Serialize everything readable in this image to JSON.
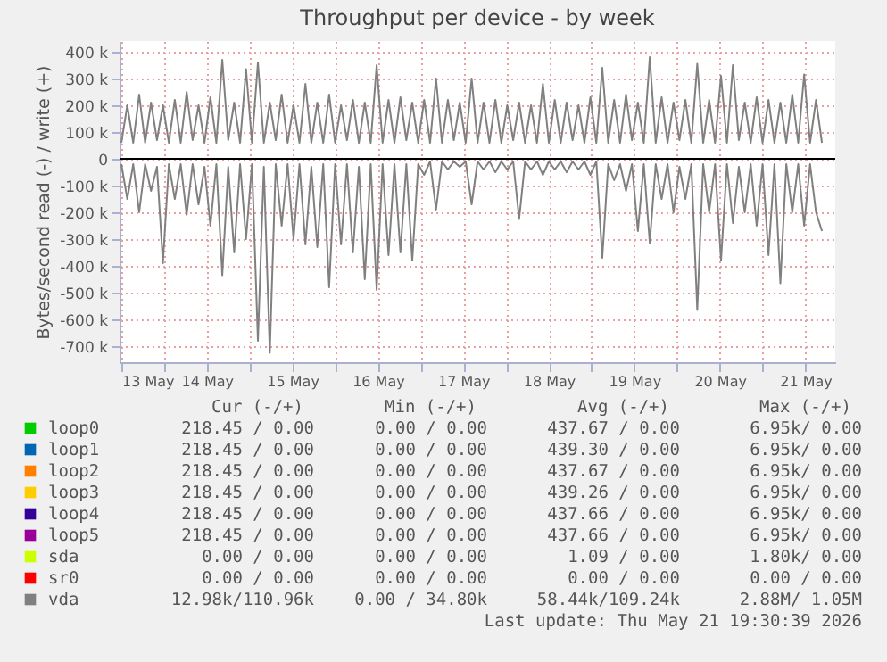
{
  "chart_data": {
    "type": "line",
    "title": "Throughput per device - by week",
    "ylabel": "Bytes/second read (-) / write (+)",
    "x": [
      "2026-05-13T12:00",
      "2026-05-13T13:40",
      "2026-05-13T15:20",
      "2026-05-13T17:00",
      "2026-05-13T18:40",
      "2026-05-13T20:20",
      "2026-05-13T22:00",
      "2026-05-13T23:40",
      "2026-05-14T01:20",
      "2026-05-14T03:00",
      "2026-05-14T04:40",
      "2026-05-14T06:20",
      "2026-05-14T08:00",
      "2026-05-14T09:40",
      "2026-05-14T11:20",
      "2026-05-14T13:00",
      "2026-05-14T14:40",
      "2026-05-14T16:20",
      "2026-05-14T18:00",
      "2026-05-14T19:40",
      "2026-05-14T21:20",
      "2026-05-14T23:00",
      "2026-05-15T00:40",
      "2026-05-15T02:20",
      "2026-05-15T04:00",
      "2026-05-15T05:40",
      "2026-05-15T07:20",
      "2026-05-15T09:00",
      "2026-05-15T10:40",
      "2026-05-15T12:20",
      "2026-05-15T14:00",
      "2026-05-15T15:40",
      "2026-05-15T17:20",
      "2026-05-15T19:00",
      "2026-05-15T20:40",
      "2026-05-15T22:20",
      "2026-05-16T00:00",
      "2026-05-16T01:40",
      "2026-05-16T03:20",
      "2026-05-16T05:00",
      "2026-05-16T06:40",
      "2026-05-16T08:20",
      "2026-05-16T10:00",
      "2026-05-16T11:40",
      "2026-05-16T13:20",
      "2026-05-16T15:00",
      "2026-05-16T16:40",
      "2026-05-16T18:20",
      "2026-05-16T20:00",
      "2026-05-16T21:40",
      "2026-05-16T23:20",
      "2026-05-17T01:00",
      "2026-05-17T02:40",
      "2026-05-17T04:20",
      "2026-05-17T06:00",
      "2026-05-17T07:40",
      "2026-05-17T09:20",
      "2026-05-17T11:00",
      "2026-05-17T12:40",
      "2026-05-17T14:20",
      "2026-05-17T16:00",
      "2026-05-17T17:40",
      "2026-05-17T19:20",
      "2026-05-17T21:00",
      "2026-05-17T22:40",
      "2026-05-18T00:20",
      "2026-05-18T02:00",
      "2026-05-18T03:40",
      "2026-05-18T05:20",
      "2026-05-18T07:00",
      "2026-05-18T08:40",
      "2026-05-18T10:20",
      "2026-05-18T12:00",
      "2026-05-18T13:40",
      "2026-05-18T15:20",
      "2026-05-18T17:00",
      "2026-05-18T18:40",
      "2026-05-18T20:20",
      "2026-05-18T22:00",
      "2026-05-18T23:40",
      "2026-05-19T01:20",
      "2026-05-19T03:00",
      "2026-05-19T04:40",
      "2026-05-19T06:20",
      "2026-05-19T08:00",
      "2026-05-19T09:40",
      "2026-05-19T11:20",
      "2026-05-19T13:00",
      "2026-05-19T14:40",
      "2026-05-19T16:20",
      "2026-05-19T18:00",
      "2026-05-19T19:40",
      "2026-05-19T21:20",
      "2026-05-19T23:00",
      "2026-05-20T00:40",
      "2026-05-20T02:20",
      "2026-05-20T04:00",
      "2026-05-20T05:40",
      "2026-05-20T07:20",
      "2026-05-20T09:00",
      "2026-05-20T10:40",
      "2026-05-20T12:20",
      "2026-05-20T14:00",
      "2026-05-20T15:40",
      "2026-05-20T17:20",
      "2026-05-20T19:00",
      "2026-05-20T20:40",
      "2026-05-20T22:20",
      "2026-05-21T00:00",
      "2026-05-21T01:40",
      "2026-05-21T03:20",
      "2026-05-21T05:00",
      "2026-05-21T06:40",
      "2026-05-21T08:20",
      "2026-05-21T10:00",
      "2026-05-21T11:40",
      "2026-05-21T13:20",
      "2026-05-21T15:00",
      "2026-05-21T16:40"
    ],
    "series": [
      {
        "name": "loop0",
        "color": "#00cc00",
        "values": [
          null,
          null,
          null,
          null,
          null,
          null,
          null,
          null,
          null,
          null,
          null,
          null,
          null,
          null,
          null,
          null,
          null,
          null,
          null,
          null,
          null,
          null,
          null,
          null,
          null,
          null,
          null,
          null,
          null,
          null,
          null,
          null,
          null,
          null,
          null,
          null,
          null,
          null,
          null,
          null,
          null,
          null,
          null,
          null,
          null,
          null,
          null,
          null,
          null,
          null,
          null,
          null,
          null,
          null,
          null,
          null,
          null,
          null,
          null,
          null,
          null,
          null,
          null,
          null,
          null,
          null,
          null,
          null,
          null,
          null,
          null,
          null,
          null,
          null,
          null,
          null,
          null,
          null,
          null,
          null,
          null,
          null,
          null,
          null,
          null,
          null,
          null,
          null,
          null,
          null,
          null,
          null,
          null,
          null,
          null,
          null,
          null,
          null,
          null,
          null,
          null,
          null,
          null,
          null,
          null,
          null,
          null,
          null,
          null,
          null,
          null,
          null,
          null,
          null,
          null,
          null,
          null,
          null,
          null
        ]
      },
      {
        "name": "loop1",
        "color": "#0066b3",
        "values": [
          null,
          null,
          null,
          null,
          null,
          null,
          null,
          null,
          null,
          null,
          null,
          null,
          null,
          null,
          null,
          null,
          null,
          null,
          null,
          null,
          null,
          null,
          null,
          null,
          null,
          null,
          null,
          null,
          null,
          null,
          null,
          null,
          null,
          null,
          null,
          null,
          null,
          null,
          null,
          null,
          null,
          null,
          null,
          null,
          null,
          null,
          null,
          null,
          null,
          null,
          null,
          null,
          null,
          null,
          null,
          null,
          null,
          null,
          null,
          null,
          null,
          null,
          null,
          null,
          null,
          null,
          null,
          null,
          null,
          null,
          null,
          null,
          null,
          null,
          null,
          null,
          null,
          null,
          null,
          null,
          null,
          null,
          null,
          null,
          null,
          null,
          null,
          null,
          null,
          null,
          null,
          null,
          null,
          null,
          null,
          null,
          null,
          null,
          null,
          null,
          null,
          null,
          null,
          null,
          null,
          null,
          null,
          null,
          null,
          null,
          null,
          null,
          null,
          null,
          null,
          null,
          null,
          null,
          null
        ]
      },
      {
        "name": "loop2",
        "color": "#ff8000",
        "values": [
          null,
          null,
          null,
          null,
          null,
          null,
          null,
          null,
          null,
          null,
          null,
          null,
          null,
          null,
          null,
          null,
          null,
          null,
          null,
          null,
          null,
          null,
          null,
          null,
          null,
          null,
          null,
          null,
          null,
          null,
          null,
          null,
          null,
          null,
          null,
          null,
          null,
          null,
          null,
          null,
          null,
          null,
          null,
          null,
          null,
          null,
          null,
          null,
          null,
          null,
          null,
          null,
          null,
          null,
          null,
          null,
          null,
          null,
          null,
          null,
          null,
          null,
          null,
          null,
          null,
          null,
          null,
          null,
          null,
          null,
          null,
          null,
          null,
          null,
          null,
          null,
          null,
          null,
          null,
          null,
          null,
          null,
          null,
          null,
          null,
          null,
          null,
          null,
          null,
          null,
          null,
          null,
          null,
          null,
          null,
          null,
          null,
          null,
          null,
          null,
          null,
          null,
          null,
          null,
          null,
          null,
          null,
          null,
          null,
          null,
          null,
          null,
          null,
          null,
          null,
          null,
          null,
          null,
          null
        ]
      },
      {
        "name": "loop3",
        "color": "#ffcc00",
        "values": [
          null,
          null,
          null,
          null,
          null,
          null,
          null,
          null,
          null,
          null,
          null,
          null,
          null,
          null,
          null,
          null,
          null,
          null,
          null,
          null,
          null,
          null,
          null,
          null,
          null,
          null,
          null,
          null,
          null,
          null,
          null,
          null,
          null,
          null,
          null,
          null,
          null,
          null,
          null,
          null,
          null,
          null,
          null,
          null,
          null,
          null,
          null,
          null,
          null,
          null,
          null,
          null,
          null,
          null,
          null,
          null,
          null,
          null,
          null,
          null,
          null,
          null,
          null,
          null,
          null,
          null,
          null,
          null,
          null,
          null,
          null,
          null,
          null,
          null,
          null,
          null,
          null,
          null,
          null,
          null,
          null,
          null,
          null,
          null,
          null,
          null,
          null,
          null,
          null,
          null,
          null,
          null,
          null,
          null,
          null,
          null,
          null,
          null,
          null,
          null,
          null,
          null,
          null,
          null,
          null,
          null,
          null,
          null,
          null,
          null,
          null,
          null,
          null,
          null,
          null,
          null,
          null,
          null,
          null
        ]
      },
      {
        "name": "loop4",
        "color": "#330099",
        "values": [
          null,
          null,
          null,
          null,
          null,
          null,
          null,
          null,
          null,
          null,
          null,
          null,
          null,
          null,
          null,
          null,
          null,
          null,
          null,
          null,
          null,
          null,
          null,
          null,
          null,
          null,
          null,
          null,
          null,
          null,
          null,
          null,
          null,
          null,
          null,
          null,
          null,
          null,
          null,
          null,
          null,
          null,
          null,
          null,
          null,
          null,
          null,
          null,
          null,
          null,
          null,
          null,
          null,
          null,
          null,
          null,
          null,
          null,
          null,
          null,
          null,
          null,
          null,
          null,
          null,
          null,
          null,
          null,
          null,
          null,
          null,
          null,
          null,
          null,
          null,
          null,
          null,
          null,
          null,
          null,
          null,
          null,
          null,
          null,
          null,
          null,
          null,
          null,
          null,
          null,
          null,
          null,
          null,
          null,
          null,
          null,
          null,
          null,
          null,
          null,
          null,
          null,
          null,
          null,
          null,
          null,
          null,
          null,
          null,
          null,
          null,
          null,
          null,
          null,
          null,
          null,
          null,
          null,
          null
        ]
      },
      {
        "name": "loop5",
        "color": "#990099",
        "values": [
          null,
          null,
          null,
          null,
          null,
          null,
          null,
          null,
          null,
          null,
          null,
          null,
          null,
          null,
          null,
          null,
          null,
          null,
          null,
          null,
          null,
          null,
          null,
          null,
          null,
          null,
          null,
          null,
          null,
          null,
          null,
          null,
          null,
          null,
          null,
          null,
          null,
          null,
          null,
          null,
          null,
          null,
          null,
          null,
          null,
          null,
          null,
          null,
          null,
          null,
          null,
          null,
          null,
          null,
          null,
          null,
          null,
          null,
          null,
          null,
          null,
          null,
          null,
          null,
          null,
          null,
          null,
          null,
          null,
          null,
          null,
          null,
          null,
          null,
          null,
          null,
          null,
          null,
          null,
          null,
          null,
          null,
          null,
          null,
          null,
          null,
          null,
          null,
          null,
          null,
          null,
          null,
          null,
          null,
          null,
          null,
          null,
          null,
          null,
          null,
          null,
          null,
          null,
          null,
          null,
          null,
          null,
          null,
          null,
          null,
          null,
          null,
          null,
          null,
          null,
          null,
          null,
          null,
          null
        ]
      },
      {
        "name": "sda",
        "color": "#ccff00",
        "values": [
          null,
          null,
          null,
          null,
          null,
          null,
          null,
          null,
          null,
          null,
          null,
          null,
          null,
          null,
          null,
          null,
          null,
          null,
          null,
          null,
          null,
          null,
          null,
          null,
          null,
          null,
          null,
          null,
          null,
          null,
          null,
          null,
          null,
          null,
          null,
          null,
          null,
          null,
          null,
          null,
          null,
          null,
          null,
          null,
          null,
          null,
          null,
          null,
          null,
          null,
          null,
          null,
          null,
          null,
          null,
          null,
          null,
          null,
          null,
          null,
          null,
          null,
          null,
          null,
          null,
          null,
          null,
          null,
          null,
          null,
          null,
          null,
          null,
          null,
          null,
          null,
          null,
          null,
          null,
          null,
          null,
          null,
          null,
          null,
          null,
          null,
          null,
          null,
          null,
          null,
          null,
          null,
          null,
          null,
          null,
          null,
          null,
          null,
          null,
          null,
          null,
          null,
          null,
          null,
          null,
          null,
          null,
          null,
          null,
          null,
          null,
          null,
          null,
          null,
          null,
          null,
          null,
          null,
          null
        ]
      },
      {
        "name": "sr0",
        "color": "#ff0000",
        "values": [
          null,
          null,
          null,
          null,
          null,
          null,
          null,
          null,
          null,
          null,
          null,
          null,
          null,
          null,
          null,
          null,
          null,
          null,
          null,
          null,
          null,
          null,
          null,
          null,
          null,
          null,
          null,
          null,
          null,
          null,
          null,
          null,
          null,
          null,
          null,
          null,
          null,
          null,
          null,
          null,
          null,
          null,
          null,
          null,
          null,
          null,
          null,
          null,
          null,
          null,
          null,
          null,
          null,
          null,
          null,
          null,
          null,
          null,
          null,
          null,
          null,
          null,
          null,
          null,
          null,
          null,
          null,
          null,
          null,
          null,
          null,
          null,
          null,
          null,
          null,
          null,
          null,
          null,
          null,
          null,
          null,
          null,
          null,
          null,
          null,
          null,
          null,
          null,
          null,
          null,
          null,
          null,
          null,
          null,
          null,
          null,
          null,
          null,
          null,
          null,
          null,
          null,
          null,
          null,
          null,
          null,
          null,
          null,
          null,
          null,
          null,
          null,
          null,
          null,
          null,
          null,
          null,
          null,
          null
        ]
      },
      {
        "name": "vda",
        "color": "#808080",
        "values": [
          60000,
          200000,
          60000,
          240000,
          60000,
          210000,
          70000,
          200000,
          60000,
          220000,
          60000,
          250000,
          70000,
          200000,
          60000,
          230000,
          60000,
          370000,
          70000,
          210000,
          60000,
          335000,
          60000,
          360000,
          60000,
          210000,
          70000,
          240000,
          60000,
          200000,
          60000,
          280000,
          60000,
          210000,
          60000,
          240000,
          60000,
          200000,
          70000,
          220000,
          60000,
          210000,
          60000,
          350000,
          60000,
          220000,
          60000,
          230000,
          70000,
          210000,
          60000,
          220000,
          60000,
          300000,
          60000,
          220000,
          70000,
          210000,
          60000,
          300000,
          60000,
          210000,
          60000,
          220000,
          60000,
          200000,
          70000,
          210000,
          60000,
          200000,
          60000,
          280000,
          60000,
          220000,
          60000,
          210000,
          70000,
          200000,
          60000,
          230000,
          60000,
          340000,
          60000,
          220000,
          60000,
          240000,
          70000,
          210000,
          60000,
          380000,
          60000,
          230000,
          60000,
          210000,
          70000,
          220000,
          60000,
          355000,
          60000,
          220000,
          60000,
          310000,
          60000,
          350000,
          70000,
          210000,
          60000,
          230000,
          60000,
          220000,
          60000,
          210000,
          60000,
          240000,
          60000,
          315000,
          60000,
          220000,
          60000
        ]
      },
      {
        "color": "#808080",
        "values": [
          -20000,
          -150000,
          -20000,
          -200000,
          -20000,
          -120000,
          -30000,
          -390000,
          -20000,
          -150000,
          -20000,
          -210000,
          -20000,
          -170000,
          -30000,
          -250000,
          -20000,
          -435000,
          -30000,
          -350000,
          -20000,
          -300000,
          -20000,
          -680000,
          -30000,
          -725000,
          -20000,
          -250000,
          -20000,
          -300000,
          -20000,
          -320000,
          -30000,
          -330000,
          -20000,
          -480000,
          -20000,
          -320000,
          -20000,
          -350000,
          -30000,
          -450000,
          -20000,
          -490000,
          -20000,
          -360000,
          -20000,
          -350000,
          -20000,
          -380000,
          -20000,
          -60000,
          -10000,
          -190000,
          -10000,
          -40000,
          -10000,
          -30000,
          -10000,
          -170000,
          -10000,
          -40000,
          -10000,
          -50000,
          -10000,
          -40000,
          -10000,
          -225000,
          -10000,
          -40000,
          -10000,
          -60000,
          -10000,
          -40000,
          -10000,
          -50000,
          -10000,
          -40000,
          -10000,
          -60000,
          -10000,
          -370000,
          -20000,
          -80000,
          -20000,
          -120000,
          -20000,
          -270000,
          -20000,
          -315000,
          -20000,
          -150000,
          -20000,
          -200000,
          -30000,
          -150000,
          -20000,
          -565000,
          -20000,
          -200000,
          -20000,
          -380000,
          -20000,
          -240000,
          -30000,
          -200000,
          -20000,
          -250000,
          -20000,
          -360000,
          -20000,
          -465000,
          -20000,
          -200000,
          -20000,
          -250000,
          -20000,
          -200000,
          -270000
        ]
      }
    ],
    "xlim": [
      "2026-05-13T11:30",
      "2026-05-21T20:24"
    ],
    "xticks": [
      {
        "value": "2026-05-13T12:00",
        "label": "13 May"
      },
      {
        "value": "2026-05-14T00:00",
        "label": null
      },
      {
        "value": "2026-05-14T12:00",
        "label": "14 May"
      },
      {
        "value": "2026-05-15T00:00",
        "label": null
      },
      {
        "value": "2026-05-15T12:00",
        "label": "15 May"
      },
      {
        "value": "2026-05-16T00:00",
        "label": null
      },
      {
        "value": "2026-05-16T12:00",
        "label": "16 May"
      },
      {
        "value": "2026-05-17T00:00",
        "label": null
      },
      {
        "value": "2026-05-17T12:00",
        "label": "17 May"
      },
      {
        "value": "2026-05-18T00:00",
        "label": null
      },
      {
        "value": "2026-05-18T12:00",
        "label": "18 May"
      },
      {
        "value": "2026-05-19T00:00",
        "label": null
      },
      {
        "value": "2026-05-19T12:00",
        "label": "19 May"
      },
      {
        "value": "2026-05-20T00:00",
        "label": null
      },
      {
        "value": "2026-05-20T12:00",
        "label": "20 May"
      },
      {
        "value": "2026-05-21T00:00",
        "label": null
      },
      {
        "value": "2026-05-21T12:00",
        "label": "21 May"
      }
    ],
    "ylim": [
      -760000,
      440000
    ],
    "yticks": [
      {
        "value": 400000,
        "label": "400 k"
      },
      {
        "value": 300000,
        "label": "300 k"
      },
      {
        "value": 200000,
        "label": "200 k"
      },
      {
        "value": 100000,
        "label": "100 k"
      },
      0,
      {
        "value": -100000,
        "label": "-100 k"
      },
      {
        "value": -200000,
        "label": "-200 k"
      },
      {
        "value": -300000,
        "label": "-300 k"
      },
      {
        "value": -400000,
        "label": "-400 k"
      },
      {
        "value": -500000,
        "label": "-500 k"
      },
      {
        "value": -600000,
        "label": "-600 k"
      },
      {
        "value": -700000,
        "label": "-700 k"
      }
    ],
    "ref_lines": [
      {
        "axis": "y",
        "value": 0,
        "color": "#000000"
      }
    ],
    "grid": true,
    "legend": "bottom",
    "marker": "none",
    "line_style": "solid",
    "annotations": [
      "Cur (-/+)",
      "Min (-/+)",
      "Avg (-/+)",
      "Max (-/+)",
      "218.45 / 0.00",
      "0.00 / 0.00",
      "437.67 / 0.00",
      "6.95k/ 0.00",
      "218.45 / 0.00",
      "0.00 / 0.00",
      "439.30 / 0.00",
      "6.95k/ 0.00",
      "218.45 / 0.00",
      "0.00 / 0.00",
      "437.67 / 0.00",
      "6.95k/ 0.00",
      "218.45 / 0.00",
      "0.00 / 0.00",
      "439.26 / 0.00",
      "6.95k/ 0.00",
      "218.45 / 0.00",
      "0.00 / 0.00",
      "437.66 / 0.00",
      "6.95k/ 0.00",
      "218.45 / 0.00",
      "0.00 / 0.00",
      "437.66 / 0.00",
      "6.95k/ 0.00",
      "0.00 / 0.00",
      "0.00 / 0.00",
      "1.09 / 0.00",
      "1.80k/ 0.00",
      "0.00 / 0.00",
      "0.00 / 0.00",
      "0.00 / 0.00",
      "0.00 / 0.00",
      "12.98k/110.96k",
      "0.00 / 34.80k",
      "58.44k/109.24k",
      "2.88M/ 1.05M",
      "Last update: Thu May 21 19:30:39 2026"
    ]
  }
}
